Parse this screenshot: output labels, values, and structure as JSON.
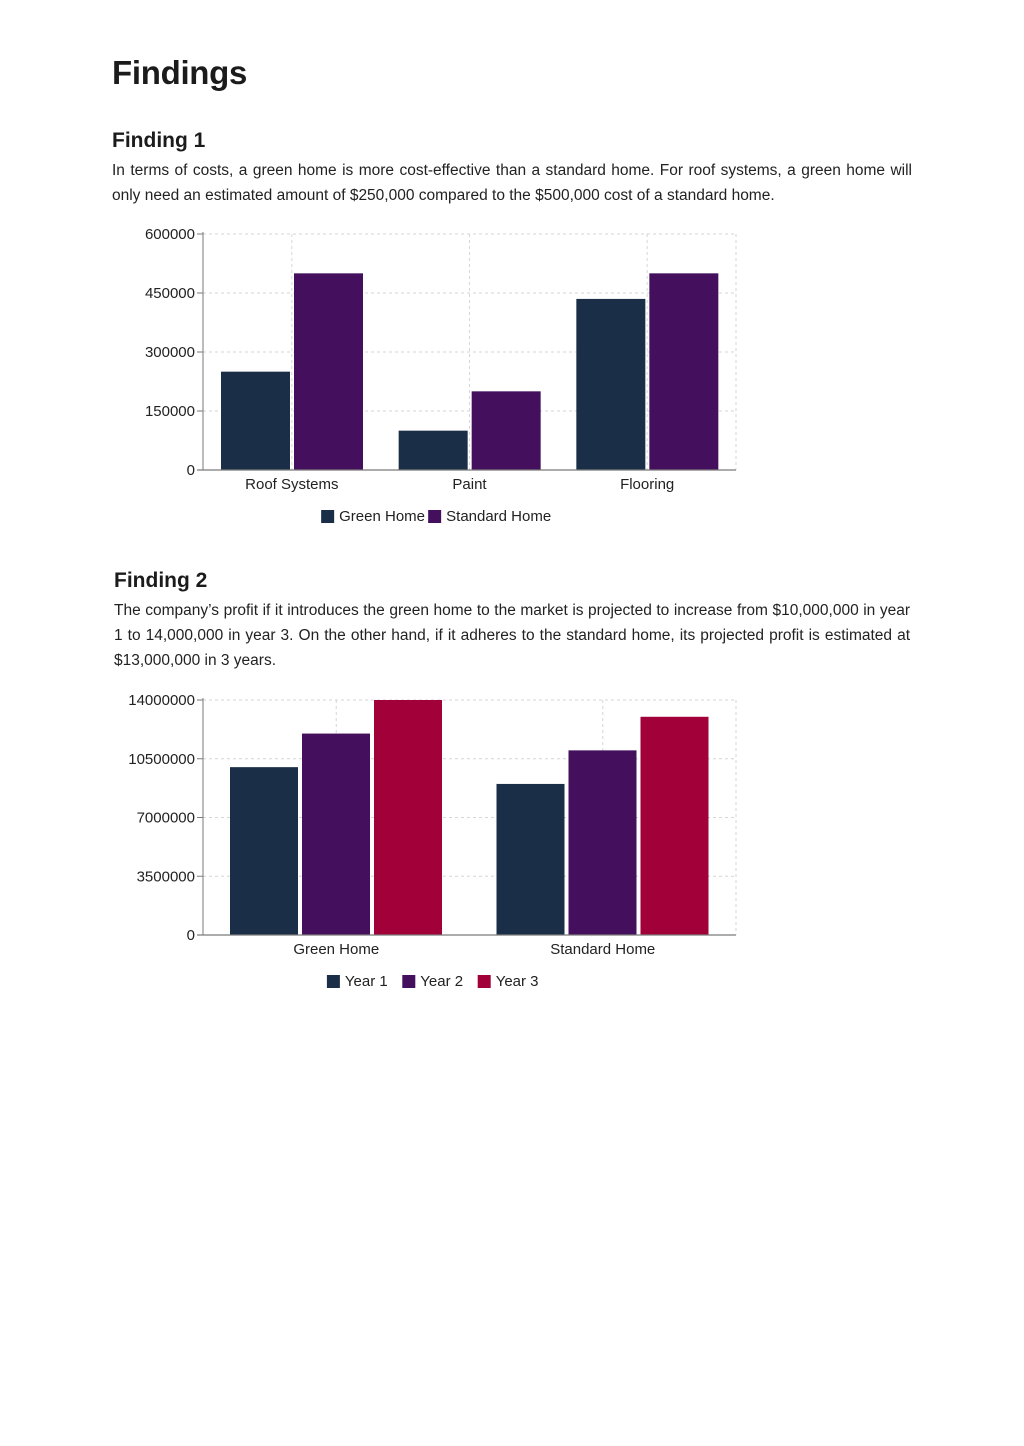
{
  "page": {
    "title": "Findings"
  },
  "findings": [
    {
      "heading": "Finding 1",
      "text": "In terms of costs, a green home is more cost-effective than a standard home. For roof systems, a green home will only need an estimated amount of $250,000 compared to the $500,000 cost of a standard home."
    },
    {
      "heading": "Finding 2",
      "text": "The company’s profit if it introduces the green home to the market is projected to increase from $10,000,000 in year 1 to 14,000,000 in year 3. On the other hand, if it adheres to the standard home, its projected profit is estimated at $13,000,000 in 3 years."
    }
  ],
  "chart_data": [
    {
      "type": "bar",
      "categories": [
        "Roof Systems",
        "Paint",
        "Flooring"
      ],
      "series": [
        {
          "name": "Green Home",
          "values": [
            250000,
            100000,
            435000
          ],
          "color": "#1b2e48"
        },
        {
          "name": "Standard Home",
          "values": [
            500000,
            200000,
            500000
          ],
          "color": "#44105e"
        }
      ],
      "yticks": [
        0,
        150000,
        300000,
        450000,
        600000
      ],
      "ylim": [
        0,
        600000
      ],
      "grid": true,
      "legend": "bottom-center"
    },
    {
      "type": "bar",
      "categories": [
        "Green Home",
        "Standard Home"
      ],
      "series": [
        {
          "name": "Year 1",
          "values": [
            10000000,
            9000000
          ],
          "color": "#1b2e48"
        },
        {
          "name": "Year 2",
          "values": [
            12000000,
            11000000
          ],
          "color": "#44105e"
        },
        {
          "name": "Year 3",
          "values": [
            14000000,
            13000000
          ],
          "color": "#a10038"
        }
      ],
      "yticks": [
        0,
        3500000,
        7000000,
        10500000,
        14000000
      ],
      "ylim": [
        0,
        14000000
      ],
      "grid": true,
      "legend": "bottom-center"
    }
  ]
}
